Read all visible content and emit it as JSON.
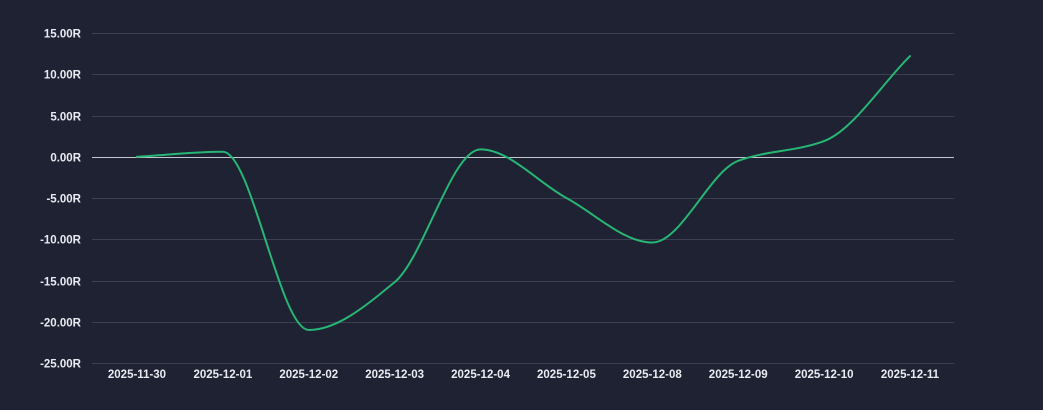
{
  "chart_data": {
    "type": "line",
    "title": "",
    "xlabel": "",
    "ylabel": "",
    "categories": [
      "2025-11-30",
      "2025-12-01",
      "2025-12-02",
      "2025-12-03",
      "2025-12-04",
      "2025-12-05",
      "2025-12-08",
      "2025-12-09",
      "2025-12-10",
      "2025-12-11"
    ],
    "series": [
      {
        "values": [
          0.0,
          0.6,
          -21.0,
          -15.2,
          0.9,
          -5.0,
          -10.4,
          -0.5,
          1.9,
          12.2
        ]
      }
    ],
    "ylim": [
      -25,
      15
    ],
    "yticks": [
      15,
      10,
      5,
      0,
      -5,
      -10,
      -15,
      -20,
      -25
    ],
    "ytick_labels": [
      "15.00R",
      "10.00R",
      "5.00R",
      "0.00R",
      "-5.00R",
      "-10.00R",
      "-15.00R",
      "-20.00R",
      "-25.00R"
    ],
    "grid": true,
    "legend": "none",
    "colors": {
      "background": "#1e2233",
      "grid": "#3a3f52",
      "zero_line": "#c4c7d0",
      "series": "#27b673",
      "text": "#e9ebf1"
    }
  }
}
